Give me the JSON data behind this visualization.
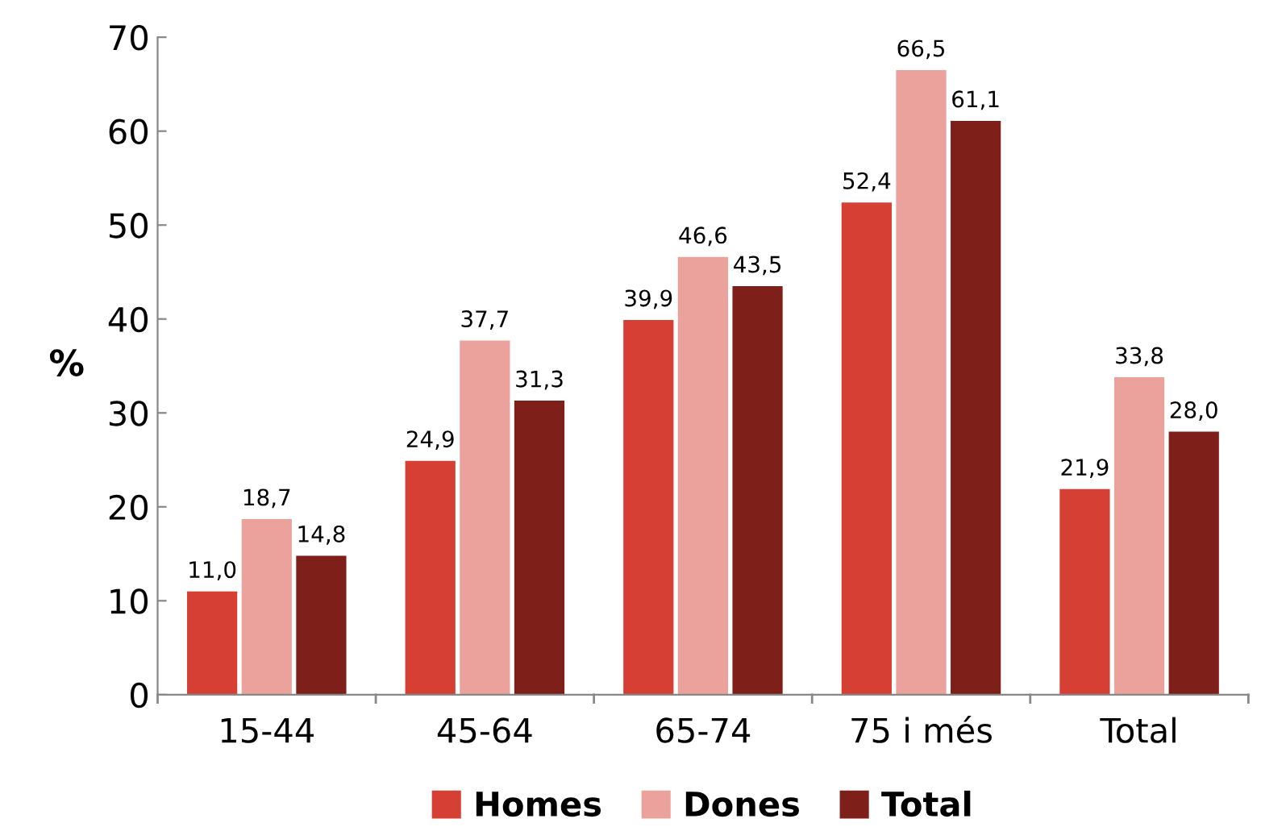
{
  "chart_data": {
    "type": "bar",
    "ylabel": "%",
    "categories": [
      "15-44",
      "45-64",
      "65-74",
      "75 i més",
      "Total"
    ],
    "series": [
      {
        "name": "Homes",
        "color": "#d63f33",
        "values": [
          11.0,
          24.9,
          39.9,
          52.4,
          21.9
        ],
        "value_labels": [
          "11,0",
          "24,9",
          "39,9",
          "52,4",
          "21,9"
        ]
      },
      {
        "name": "Dones",
        "color": "#eba29c",
        "values": [
          18.7,
          37.7,
          46.6,
          66.5,
          33.8
        ],
        "value_labels": [
          "18,7",
          "37,7",
          "46,6",
          "66,5",
          "33,8"
        ]
      },
      {
        "name": "Total",
        "color": "#7f1f1a",
        "values": [
          14.8,
          31.3,
          43.5,
          61.1,
          28.0
        ],
        "value_labels": [
          "14,8",
          "31,3",
          "43,5",
          "61,1",
          "28,0"
        ]
      }
    ],
    "ylim": [
      0,
      70
    ],
    "yticks": [
      0,
      10,
      20,
      30,
      40,
      50,
      60,
      70
    ],
    "grid": false,
    "legend": "bottom"
  }
}
